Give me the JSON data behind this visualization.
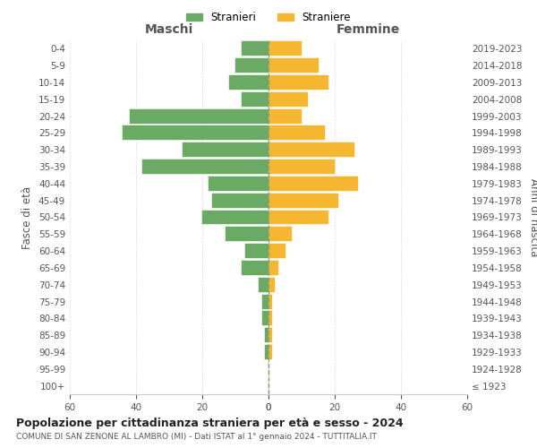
{
  "age_groups": [
    "100+",
    "95-99",
    "90-94",
    "85-89",
    "80-84",
    "75-79",
    "70-74",
    "65-69",
    "60-64",
    "55-59",
    "50-54",
    "45-49",
    "40-44",
    "35-39",
    "30-34",
    "25-29",
    "20-24",
    "15-19",
    "10-14",
    "5-9",
    "0-4"
  ],
  "birth_years": [
    "≤ 1923",
    "1924-1928",
    "1929-1933",
    "1934-1938",
    "1939-1943",
    "1944-1948",
    "1949-1953",
    "1954-1958",
    "1959-1963",
    "1964-1968",
    "1969-1973",
    "1974-1978",
    "1979-1983",
    "1984-1988",
    "1989-1993",
    "1994-1998",
    "1999-2003",
    "2004-2008",
    "2009-2013",
    "2014-2018",
    "2019-2023"
  ],
  "males": [
    0,
    0,
    1,
    1,
    2,
    2,
    3,
    8,
    7,
    13,
    20,
    17,
    18,
    38,
    26,
    44,
    42,
    8,
    12,
    10,
    8
  ],
  "females": [
    0,
    0,
    1,
    1,
    1,
    1,
    2,
    3,
    5,
    7,
    18,
    21,
    27,
    20,
    26,
    17,
    10,
    12,
    18,
    15,
    10
  ],
  "male_color": "#6aaa64",
  "female_color": "#f5b731",
  "background_color": "#ffffff",
  "grid_color": "#cccccc",
  "title": "Popolazione per cittadinanza straniera per età e sesso - 2024",
  "subtitle": "COMUNE DI SAN ZENONE AL LAMBRO (MI) - Dati ISTAT al 1° gennaio 2024 - TUTTITALIA.IT",
  "xlabel_left": "Maschi",
  "xlabel_right": "Femmine",
  "ylabel_left": "Fasce di età",
  "ylabel_right": "Anni di nascita",
  "legend_male": "Stranieri",
  "legend_female": "Straniere",
  "xlim": 60,
  "bar_height": 0.85,
  "dashed_line_color": "#999977"
}
